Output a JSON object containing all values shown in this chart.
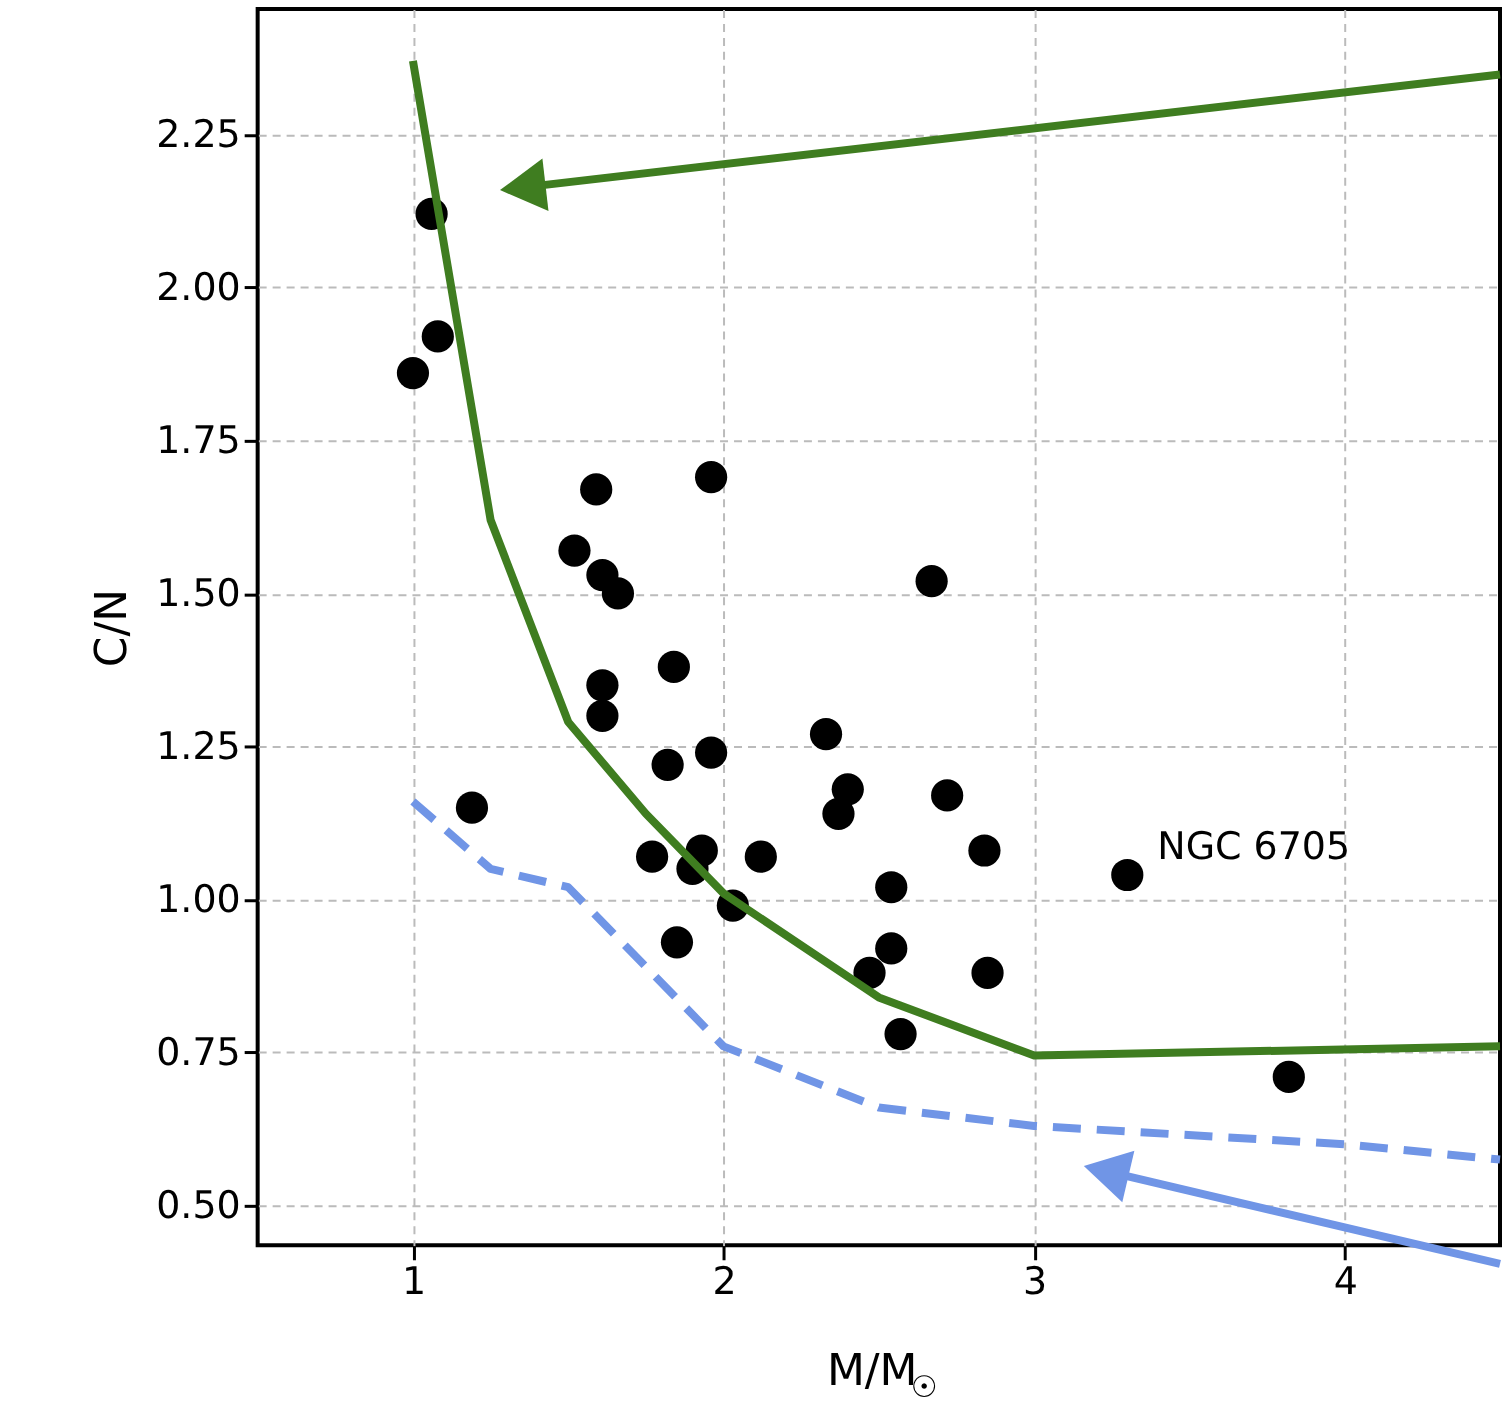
{
  "chart_data": {
    "type": "scatter",
    "xlabel": "M/M$_{☉}$",
    "ylabel": "C/N",
    "xlim": [
      0.5,
      4.5
    ],
    "ylim": [
      0.435,
      2.455
    ],
    "xticks": [
      1,
      2,
      3,
      4
    ],
    "yticks": [
      {
        "value": 0.5,
        "label": "0.50"
      },
      {
        "value": 0.75,
        "label": "0.75"
      },
      {
        "value": 1.0,
        "label": "1.00"
      },
      {
        "value": 1.25,
        "label": "1.25"
      },
      {
        "value": 1.5,
        "label": "1.50"
      },
      {
        "value": 1.75,
        "label": "1.75"
      },
      {
        "value": 2.0,
        "label": "2.00"
      },
      {
        "value": 2.25,
        "label": "2.25"
      }
    ],
    "grid": true,
    "series": [
      {
        "color": "#000000",
        "marker": "circle",
        "x": [
          1.06,
          1.08,
          1.0,
          1.59,
          1.96,
          1.52,
          1.61,
          1.66,
          2.67,
          1.61,
          1.61,
          1.84,
          1.82,
          1.96,
          1.19,
          2.33,
          2.4,
          2.37,
          2.72,
          1.77,
          1.93,
          1.9,
          2.12,
          2.03,
          1.85,
          2.54,
          2.54,
          2.47,
          2.84,
          2.85,
          2.57,
          3.3,
          3.82
        ],
        "values": [
          2.12,
          1.92,
          1.86,
          1.67,
          1.69,
          1.57,
          1.53,
          1.5,
          1.52,
          1.35,
          1.3,
          1.38,
          1.22,
          1.24,
          1.15,
          1.27,
          1.18,
          1.14,
          1.17,
          1.07,
          1.08,
          1.05,
          1.07,
          0.99,
          0.93,
          1.02,
          0.92,
          0.88,
          1.08,
          0.88,
          0.78,
          1.04,
          0.71
        ]
      },
      {
        "type": "line",
        "color": "#3f7d20",
        "line_style": "solid",
        "marker": "none",
        "x": [
          1.0,
          1.25,
          1.5,
          1.75,
          2.0,
          2.5,
          3.0,
          4.5
        ],
        "values": [
          2.37,
          1.62,
          1.29,
          1.14,
          1.01,
          0.84,
          0.745,
          0.76
        ]
      },
      {
        "type": "line",
        "color": "#7095e6",
        "line_style": "dashed",
        "marker": "none",
        "x": [
          1.0,
          1.25,
          1.5,
          2.0,
          2.5,
          3.0,
          4.0,
          4.5
        ],
        "values": [
          1.16,
          1.05,
          1.02,
          0.76,
          0.66,
          0.63,
          0.6,
          0.575
        ]
      }
    ],
    "annotations": [
      {
        "text": "NGC 6705",
        "x": 3.3,
        "y": 1.04
      }
    ]
  }
}
